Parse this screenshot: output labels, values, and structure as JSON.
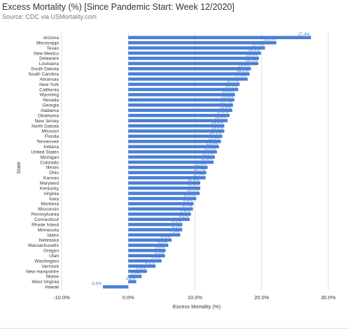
{
  "title": "Excess Mortality (%) [Since Pandemic Start: Week 12/2020]",
  "subtitle": "Source: CDC via USMortality.com",
  "colors": {
    "bar": "#4a7fd4",
    "grid": "#d9d9d9",
    "label": "#4a7fd4",
    "text": "#333333"
  },
  "chart_data": {
    "type": "bar",
    "orientation": "horizontal",
    "title": "Excess Mortality (%) [Since Pandemic Start: Week 12/2020]",
    "xlabel": "Excess Mortality (%)",
    "ylabel": "State",
    "xlim": [
      -10,
      30
    ],
    "xticks": [
      -10,
      0,
      10,
      20,
      30
    ],
    "xtick_labels": [
      "-10.0%",
      "0.0%",
      "10.0%",
      "20.0%",
      "30.0%"
    ],
    "grid": "vertical",
    "categories": [
      "Arizona",
      "Mississippi",
      "Texas",
      "New Mexico",
      "Delaware",
      "Louisiana",
      "South Dakota",
      "South Carolina",
      "Arkansas",
      "New York",
      "California",
      "Wyoming",
      "Nevada",
      "Georgia",
      "Alabama",
      "Oklahoma",
      "New Jersey",
      "North Dakota",
      "Missouri",
      "Florida",
      "Tennessee",
      "Indiana",
      "United States",
      "Michigan",
      "Colorado",
      "Illinois",
      "Ohio",
      "Kansas",
      "Maryland",
      "Kentucky",
      "Virginia",
      "Iowa",
      "Montana",
      "Wisconsin",
      "Pennsylvania",
      "Connecticut",
      "Rhode Island",
      "Minnesota",
      "Idaho",
      "Nebraska",
      "Massachusetts",
      "Oregon",
      "Utah",
      "Washington",
      "Vermont",
      "New Hampshire",
      "Maine",
      "West Virginia",
      "Hawaii"
    ],
    "values": [
      27.4,
      22.2,
      20.5,
      19.9,
      19.6,
      19.5,
      18.4,
      18.2,
      17.9,
      16.7,
      16.5,
      16.0,
      15.9,
      15.7,
      15.6,
      15.2,
      14.9,
      14.4,
      14.4,
      14.1,
      13.9,
      13.6,
      13.3,
      13.0,
      12.8,
      11.9,
      11.7,
      11.6,
      10.8,
      10.8,
      10.7,
      10.2,
      9.8,
      9.7,
      9.4,
      9.2,
      8.1,
      8.1,
      7.8,
      6.5,
      6.0,
      5.6,
      5.5,
      5.0,
      4.1,
      2.8,
      2.0,
      1.2,
      -3.8
    ],
    "data_labels": [
      "27.4%",
      "22.2%",
      "20.5%",
      "19.9%",
      "19.6%",
      "19.5%",
      "18.4%",
      "18.2%",
      "17.9%",
      "16.7%",
      "16.5%",
      "16.0%",
      "15.9%",
      "15.7%",
      "15.6%",
      "15.2%",
      "14.9%",
      "14.4%",
      "14.4%",
      "14.1%",
      "13.9%",
      "13.6%",
      "13.3%",
      "13.0%",
      "12.8%",
      "11.9%",
      "11.7%",
      "11.6%",
      "10.8%",
      "10.8%",
      "10.7%",
      "10.2%",
      "9.8%",
      "9.7%",
      "9.4%",
      "9.2%",
      "8.1%",
      "8.1%",
      "7.8%",
      "6.5%",
      "6.0%",
      "5.6%",
      "5.5%",
      "5.0%",
      "4.1%",
      "2.8%",
      "2.0%",
      "1.2%",
      "-3.8%"
    ]
  }
}
